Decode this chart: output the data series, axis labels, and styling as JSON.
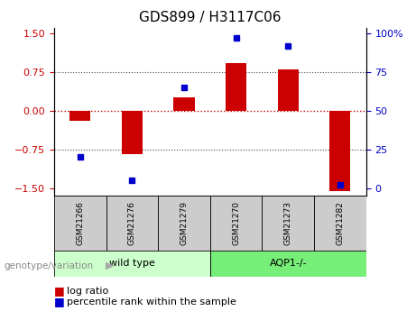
{
  "title": "GDS899 / H3117C06",
  "samples": [
    "GSM21266",
    "GSM21276",
    "GSM21279",
    "GSM21270",
    "GSM21273",
    "GSM21282"
  ],
  "log_ratios": [
    -0.2,
    -0.85,
    0.25,
    0.92,
    0.8,
    -1.55
  ],
  "percentile_ranks": [
    20,
    5,
    65,
    97,
    92,
    2
  ],
  "group_colors": [
    "#ccffcc",
    "#77ee77"
  ],
  "sample_box_color": "#cccccc",
  "bar_color": "#cc0000",
  "dot_color": "#0000cc",
  "zero_line_color": "#cc0000",
  "dotted_line_color": "#444444",
  "ylim": [
    -1.65,
    1.6
  ],
  "y_ticks_left": [
    -1.5,
    -0.75,
    0,
    0.75,
    1.5
  ],
  "y_ticks_right": [
    0,
    25,
    50,
    75,
    100
  ],
  "background": "#ffffff",
  "title_fontsize": 11,
  "tick_fontsize": 8,
  "legend_fontsize": 8
}
